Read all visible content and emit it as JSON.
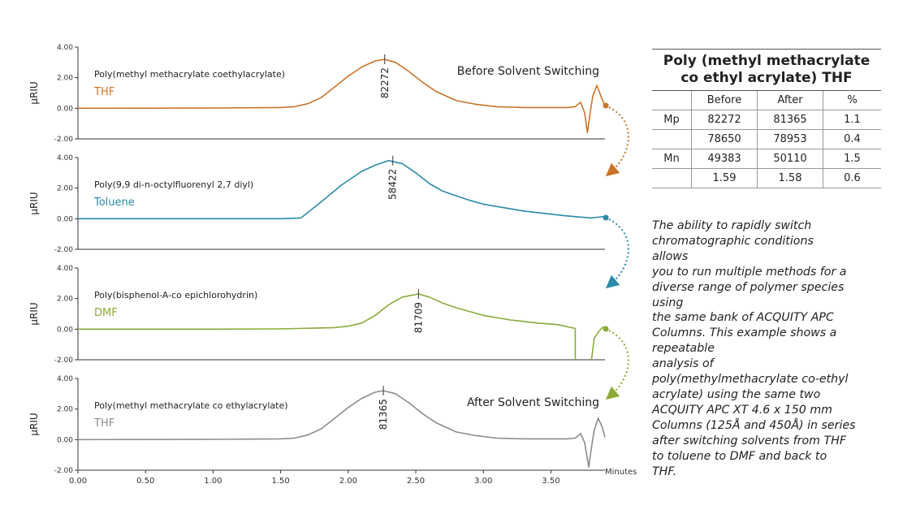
{
  "chart_data": {
    "type": "line",
    "xlabel": "Minutes",
    "x_ticks": [
      "0.00",
      "0.50",
      "1.00",
      "1.50",
      "2.00",
      "2.50",
      "3.00",
      "3.50"
    ],
    "xlim": [
      0,
      3.9
    ],
    "y_ticks": [
      "4.00",
      "2.00",
      "0.00",
      "-2.00"
    ],
    "ylim": [
      -2,
      4
    ],
    "ylabel": "µRIU",
    "panels": [
      {
        "name": "Poly(methyl methacrylate coethylacrylate)",
        "solvent": "THF",
        "color": "#c8742a",
        "heading": "Before Solvent Switching",
        "peak_label": "82272",
        "peak_x": 2.27,
        "x": [
          0,
          1.0,
          1.5,
          1.6,
          1.7,
          1.8,
          1.9,
          2.0,
          2.1,
          2.2,
          2.27,
          2.35,
          2.45,
          2.55,
          2.65,
          2.8,
          2.95,
          3.1,
          3.3,
          3.5,
          3.62,
          3.68,
          3.72,
          3.75,
          3.77,
          3.79,
          3.81,
          3.84,
          3.87,
          3.9
        ],
        "y": [
          0,
          0.02,
          0.05,
          0.1,
          0.3,
          0.7,
          1.4,
          2.1,
          2.7,
          3.1,
          3.2,
          3.0,
          2.4,
          1.7,
          1.1,
          0.5,
          0.25,
          0.1,
          0.05,
          0.05,
          0.05,
          0.1,
          0.4,
          -0.3,
          -1.6,
          -0.3,
          0.8,
          1.5,
          0.8,
          0.15
        ]
      },
      {
        "name": "Poly(9,9 di-n-octylfluorenyl 2,7 diyl)",
        "solvent": "Toluene",
        "color": "#2b8aa8",
        "peak_label": "58422",
        "peak_x": 2.33,
        "x": [
          0,
          0.5,
          1.0,
          1.5,
          1.65,
          1.8,
          1.95,
          2.1,
          2.2,
          2.3,
          2.4,
          2.5,
          2.6,
          2.7,
          2.8,
          2.9,
          3.0,
          3.1,
          3.2,
          3.3,
          3.4,
          3.5,
          3.6,
          3.7,
          3.8,
          3.9
        ],
        "y": [
          0,
          0,
          0,
          0,
          0.05,
          1.1,
          2.2,
          3.1,
          3.5,
          3.8,
          3.6,
          3.0,
          2.3,
          1.8,
          1.5,
          1.2,
          0.95,
          0.8,
          0.65,
          0.5,
          0.4,
          0.3,
          0.2,
          0.12,
          0.05,
          0.15
        ]
      },
      {
        "name": "Poly(bisphenol-A-co epichlorohydrin)",
        "solvent": "DMF",
        "color": "#8aaa3a",
        "peak_label": "81709",
        "peak_x": 2.52,
        "x": [
          0,
          1.0,
          1.5,
          1.9,
          2.0,
          2.1,
          2.2,
          2.3,
          2.4,
          2.52,
          2.6,
          2.7,
          2.8,
          3.0,
          3.2,
          3.4,
          3.55,
          3.65,
          3.68,
          3.68
        ],
        "y": [
          0,
          0,
          0.02,
          0.1,
          0.2,
          0.4,
          0.9,
          1.6,
          2.1,
          2.3,
          2.1,
          1.7,
          1.4,
          0.9,
          0.6,
          0.4,
          0.3,
          0.1,
          0.05,
          -2.0
        ]
      },
      {
        "name": "Poly(methyl methacrylate co ethylacrylate)",
        "solvent": "THF",
        "color": "#8c8c8c",
        "heading": "After Solvent Switching",
        "peak_label": "81365",
        "peak_x": 2.26,
        "x": [
          0,
          1.0,
          1.5,
          1.6,
          1.7,
          1.8,
          1.9,
          2.0,
          2.1,
          2.2,
          2.26,
          2.35,
          2.45,
          2.55,
          2.65,
          2.8,
          2.95,
          3.1,
          3.3,
          3.5,
          3.62,
          3.68,
          3.72,
          3.75,
          3.78,
          3.8,
          3.82,
          3.85,
          3.88,
          3.9
        ],
        "y": [
          0,
          0.02,
          0.05,
          0.1,
          0.3,
          0.7,
          1.4,
          2.1,
          2.7,
          3.1,
          3.2,
          3.0,
          2.4,
          1.7,
          1.1,
          0.5,
          0.25,
          0.1,
          0.05,
          0.05,
          0.05,
          0.1,
          0.4,
          -0.2,
          -1.8,
          -0.5,
          0.6,
          1.4,
          0.8,
          0.15
        ]
      }
    ]
  },
  "table": {
    "title_line1": "Poly (methyl methacrylate",
    "title_line2": "co ethyl acrylate) THF",
    "headers": [
      "",
      "Before",
      "After",
      "%"
    ],
    "rows": [
      [
        "Mp",
        "82272",
        "81365",
        "1.1"
      ],
      [
        "",
        "78650",
        "78953",
        "0.4"
      ],
      [
        "Mn",
        "49383",
        "50110",
        "1.5"
      ],
      [
        "",
        "1.59",
        "1.58",
        "0.6"
      ]
    ]
  },
  "description_lines": [
    "The ability to rapidly switch",
    "chromatographic conditions",
    "allows",
    "you to run multiple methods for a",
    "diverse range of polymer species",
    "using",
    "the same bank of ACQUITY APC",
    "Columns. This example shows a",
    "repeatable",
    "analysis of",
    "poly(methylmethacrylate co-ethyl",
    "acrylate) using the same two",
    "ACQUITY APC XT 4.6 x 150 mm",
    "Columns (125Å and 450Å) in series",
    "after switching solvents from THF",
    "to toluene to DMF and back to",
    "THF."
  ]
}
